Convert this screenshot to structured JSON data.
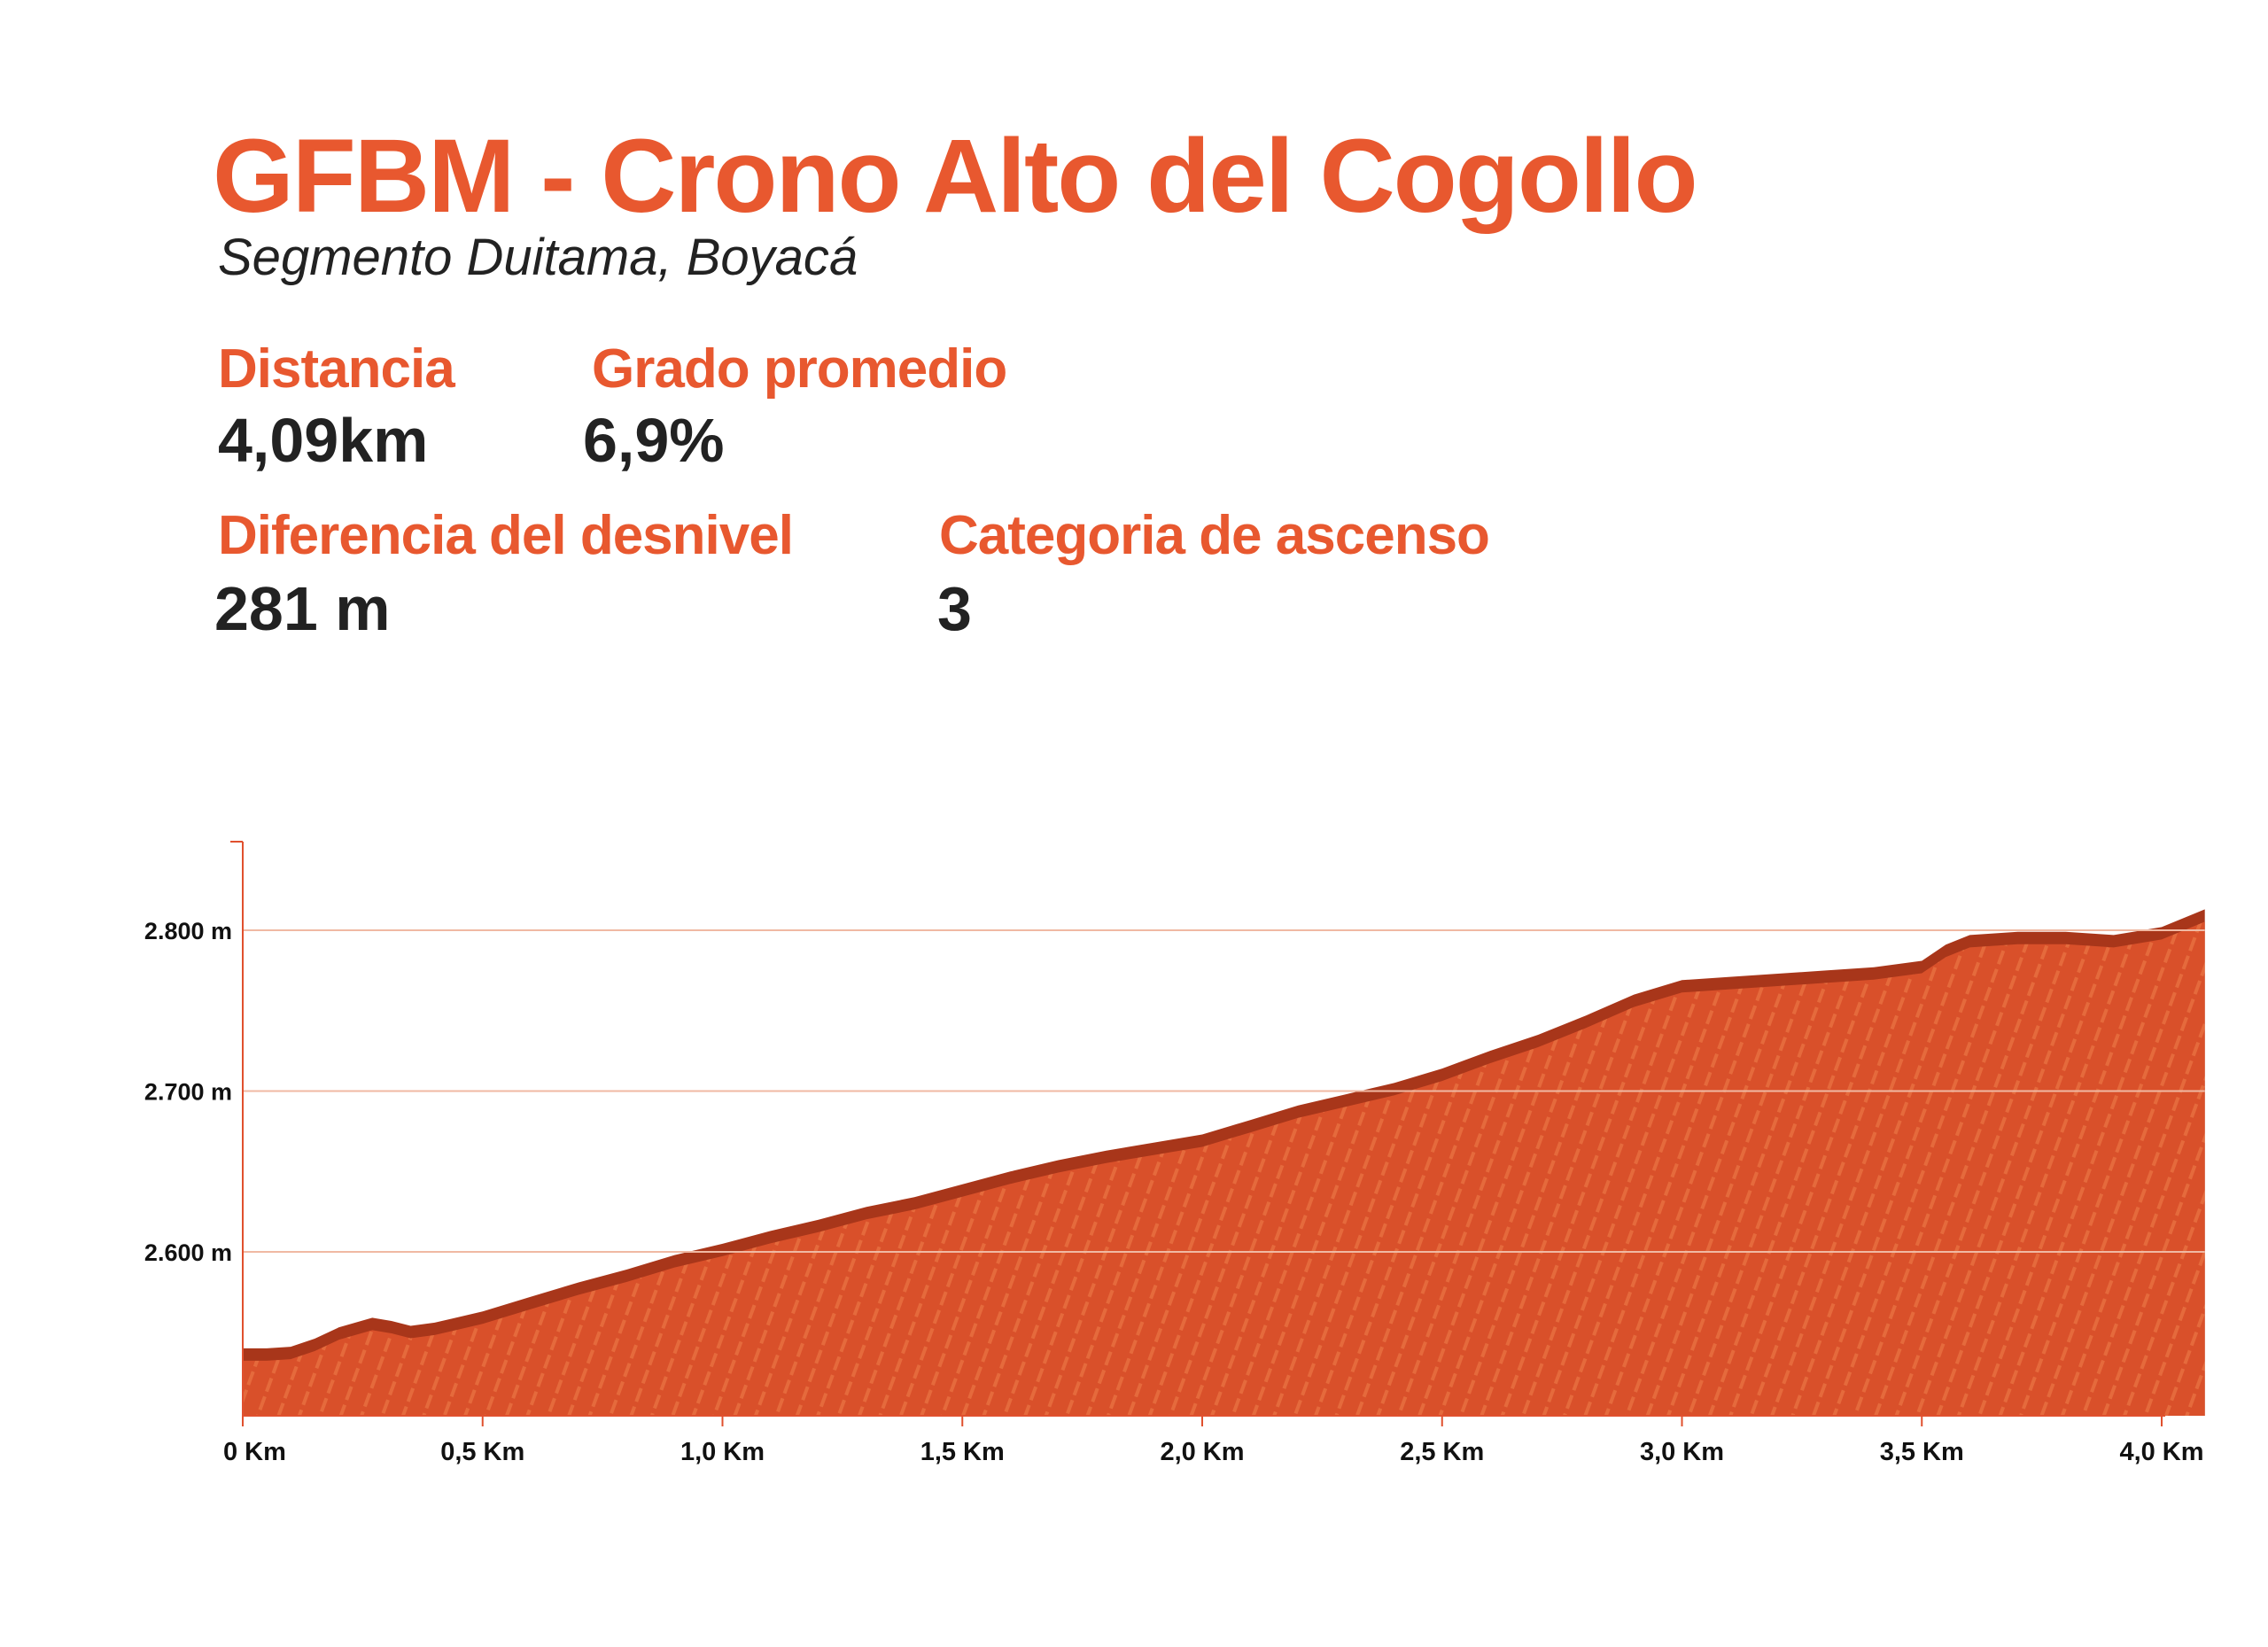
{
  "header": {
    "title": "GFBM - Crono Alto del Cogollo",
    "subtitle": "Segmento Duitama, Boyacá"
  },
  "stats": {
    "distance_label": "Distancia",
    "distance_value": "4,09km",
    "grade_label": "Grado promedio",
    "grade_value": "6,9%",
    "elevation_diff_label": "Diferencia del desnivel",
    "elevation_diff_value": "281 m",
    "category_label": "Categoria de ascenso",
    "category_value": "3"
  },
  "colors": {
    "accent": "#e8582f",
    "fill": "#d9502a",
    "edge": "#a8361a",
    "text": "#222222",
    "axis": "#e0502e"
  },
  "chart_data": {
    "type": "area",
    "title": "",
    "xlabel": "",
    "ylabel": "",
    "x_unit": "Km",
    "y_unit": "m",
    "xlim": [
      0,
      4.09
    ],
    "ylim": [
      2500,
      2850
    ],
    "x_ticks": [
      0,
      0.5,
      1.0,
      1.5,
      2.0,
      2.5,
      3.0,
      3.5,
      4.0
    ],
    "x_tick_labels": [
      "0 Km",
      "0,5 Km",
      "1,0 Km",
      "1,5 Km",
      "2,0 Km",
      "2,5 Km",
      "3,0 Km",
      "3,5 Km",
      "4,0 Km"
    ],
    "y_ticks": [
      2600,
      2700,
      2800
    ],
    "y_tick_labels": [
      "2.600 m",
      "2.700 m",
      "2.800 m"
    ],
    "grid": true,
    "series": [
      {
        "x": [
          0,
          0.05,
          0.1,
          0.15,
          0.2,
          0.27,
          0.31,
          0.35,
          0.4,
          0.5,
          0.6,
          0.7,
          0.8,
          0.9,
          1.0,
          1.1,
          1.2,
          1.3,
          1.4,
          1.5,
          1.6,
          1.7,
          1.8,
          1.9,
          2.0,
          2.1,
          2.2,
          2.3,
          2.4,
          2.5,
          2.6,
          2.7,
          2.8,
          2.9,
          3.0,
          3.1,
          3.2,
          3.3,
          3.4,
          3.5,
          3.55,
          3.6,
          3.7,
          3.8,
          3.9,
          4.0,
          4.09
        ],
        "values": [
          2540,
          2540,
          2541,
          2546,
          2553,
          2559,
          2557,
          2554,
          2556,
          2563,
          2572,
          2581,
          2589,
          2598,
          2605,
          2613,
          2620,
          2628,
          2634,
          2642,
          2650,
          2657,
          2663,
          2668,
          2673,
          2682,
          2691,
          2698,
          2705,
          2714,
          2725,
          2735,
          2747,
          2760,
          2769,
          2771,
          2773,
          2775,
          2777,
          2781,
          2791,
          2797,
          2799,
          2799,
          2797,
          2802,
          2813
        ]
      }
    ]
  }
}
